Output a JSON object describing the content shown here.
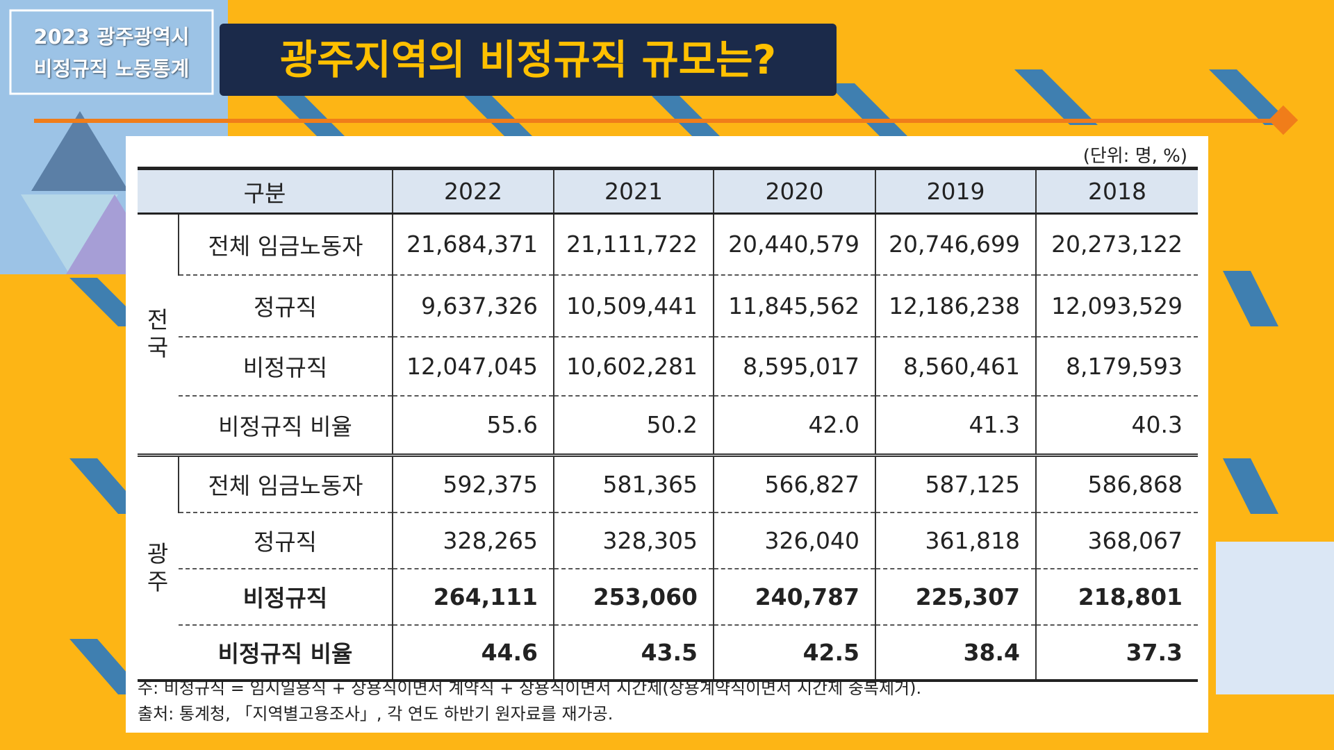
{
  "header": {
    "badge": [
      "2023 광주광역시",
      "비정규직 노동통계"
    ],
    "title": "광주지역의 비정규직 규모는?"
  },
  "table": {
    "unit": "(단위: 명, %)",
    "columns": [
      "구분",
      "2022",
      "2021",
      "2020",
      "2019",
      "2018"
    ],
    "groups": [
      {
        "label": "전국",
        "rows": [
          {
            "label": "전체 임금노동자",
            "values": [
              "21,684,371",
              "21,111,722",
              "20,440,579",
              "20,746,699",
              "20,273,122"
            ]
          },
          {
            "label": "정규직",
            "values": [
              "9,637,326",
              "10,509,441",
              "11,845,562",
              "12,186,238",
              "12,093,529"
            ]
          },
          {
            "label": "비정규직",
            "values": [
              "12,047,045",
              "10,602,281",
              "8,595,017",
              "8,560,461",
              "8,179,593"
            ]
          },
          {
            "label": "비정규직 비율",
            "values": [
              "55.6",
              "50.2",
              "42.0",
              "41.3",
              "40.3"
            ]
          }
        ]
      },
      {
        "label": "광주",
        "rows": [
          {
            "label": "전체 임금노동자",
            "values": [
              "592,375",
              "581,365",
              "566,827",
              "587,125",
              "586,868"
            ]
          },
          {
            "label": "정규직",
            "values": [
              "328,265",
              "328,305",
              "326,040",
              "361,818",
              "368,067"
            ]
          },
          {
            "label": "비정규직",
            "values": [
              "264,111",
              "253,060",
              "240,787",
              "225,307",
              "218,801"
            ]
          },
          {
            "label": "비정규직 비율",
            "values": [
              "44.6",
              "43.5",
              "42.5",
              "38.4",
              "37.3"
            ]
          }
        ]
      }
    ],
    "notes": [
      "주: 비정규직 = 임시일용직 + 상용직이면서 계약직 + 상용직이면서 시간제(상용계약직이면서 시간제 중복제거).",
      "출처: 통계청, 「지역별고용조사」, 각 연도 하반기 원자료를 재가공."
    ]
  }
}
